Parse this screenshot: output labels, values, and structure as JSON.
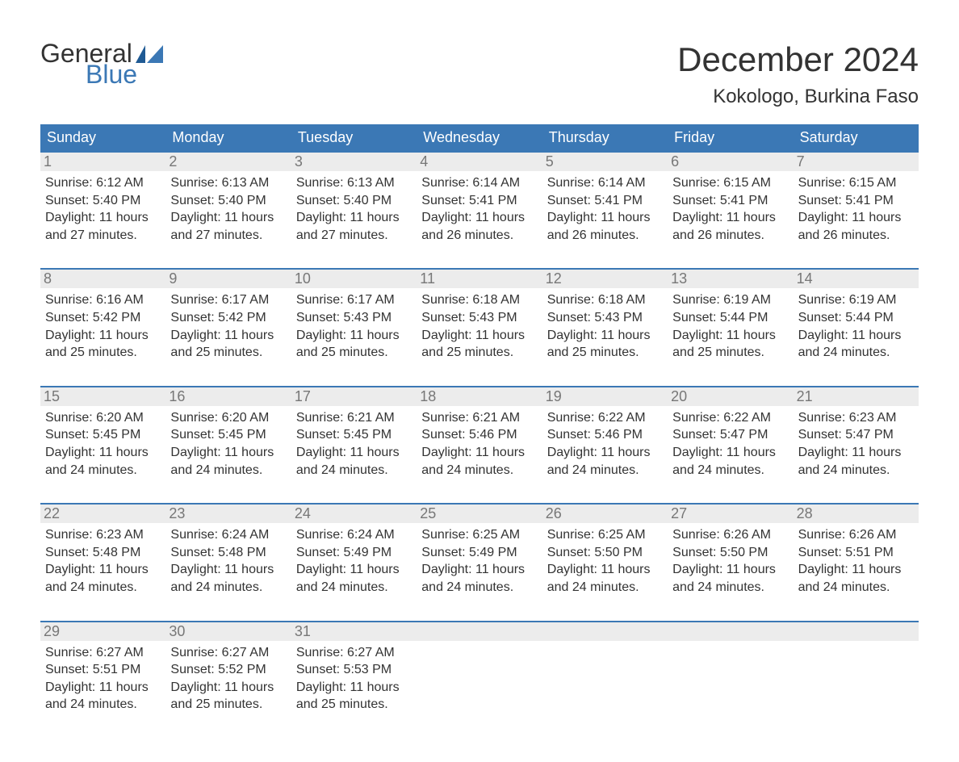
{
  "colors": {
    "brand_blue": "#3b78b5",
    "header_cell_bg": "#3b78b5",
    "header_cell_text": "#ffffff",
    "day_num_bg": "#ececec",
    "day_num_text": "#777777",
    "body_text": "#333333",
    "week_border": "#3b78b5",
    "page_bg": "#ffffff"
  },
  "logo": {
    "word1": "General",
    "word2": "Blue"
  },
  "header": {
    "month_title": "December 2024",
    "location": "Kokologo, Burkina Faso"
  },
  "calendar": {
    "days_of_week": [
      "Sunday",
      "Monday",
      "Tuesday",
      "Wednesday",
      "Thursday",
      "Friday",
      "Saturday"
    ],
    "weeks": [
      [
        {
          "n": "1",
          "sunrise": "Sunrise: 6:12 AM",
          "sunset": "Sunset: 5:40 PM",
          "dl1": "Daylight: 11 hours",
          "dl2": "and 27 minutes."
        },
        {
          "n": "2",
          "sunrise": "Sunrise: 6:13 AM",
          "sunset": "Sunset: 5:40 PM",
          "dl1": "Daylight: 11 hours",
          "dl2": "and 27 minutes."
        },
        {
          "n": "3",
          "sunrise": "Sunrise: 6:13 AM",
          "sunset": "Sunset: 5:40 PM",
          "dl1": "Daylight: 11 hours",
          "dl2": "and 27 minutes."
        },
        {
          "n": "4",
          "sunrise": "Sunrise: 6:14 AM",
          "sunset": "Sunset: 5:41 PM",
          "dl1": "Daylight: 11 hours",
          "dl2": "and 26 minutes."
        },
        {
          "n": "5",
          "sunrise": "Sunrise: 6:14 AM",
          "sunset": "Sunset: 5:41 PM",
          "dl1": "Daylight: 11 hours",
          "dl2": "and 26 minutes."
        },
        {
          "n": "6",
          "sunrise": "Sunrise: 6:15 AM",
          "sunset": "Sunset: 5:41 PM",
          "dl1": "Daylight: 11 hours",
          "dl2": "and 26 minutes."
        },
        {
          "n": "7",
          "sunrise": "Sunrise: 6:15 AM",
          "sunset": "Sunset: 5:41 PM",
          "dl1": "Daylight: 11 hours",
          "dl2": "and 26 minutes."
        }
      ],
      [
        {
          "n": "8",
          "sunrise": "Sunrise: 6:16 AM",
          "sunset": "Sunset: 5:42 PM",
          "dl1": "Daylight: 11 hours",
          "dl2": "and 25 minutes."
        },
        {
          "n": "9",
          "sunrise": "Sunrise: 6:17 AM",
          "sunset": "Sunset: 5:42 PM",
          "dl1": "Daylight: 11 hours",
          "dl2": "and 25 minutes."
        },
        {
          "n": "10",
          "sunrise": "Sunrise: 6:17 AM",
          "sunset": "Sunset: 5:43 PM",
          "dl1": "Daylight: 11 hours",
          "dl2": "and 25 minutes."
        },
        {
          "n": "11",
          "sunrise": "Sunrise: 6:18 AM",
          "sunset": "Sunset: 5:43 PM",
          "dl1": "Daylight: 11 hours",
          "dl2": "and 25 minutes."
        },
        {
          "n": "12",
          "sunrise": "Sunrise: 6:18 AM",
          "sunset": "Sunset: 5:43 PM",
          "dl1": "Daylight: 11 hours",
          "dl2": "and 25 minutes."
        },
        {
          "n": "13",
          "sunrise": "Sunrise: 6:19 AM",
          "sunset": "Sunset: 5:44 PM",
          "dl1": "Daylight: 11 hours",
          "dl2": "and 25 minutes."
        },
        {
          "n": "14",
          "sunrise": "Sunrise: 6:19 AM",
          "sunset": "Sunset: 5:44 PM",
          "dl1": "Daylight: 11 hours",
          "dl2": "and 24 minutes."
        }
      ],
      [
        {
          "n": "15",
          "sunrise": "Sunrise: 6:20 AM",
          "sunset": "Sunset: 5:45 PM",
          "dl1": "Daylight: 11 hours",
          "dl2": "and 24 minutes."
        },
        {
          "n": "16",
          "sunrise": "Sunrise: 6:20 AM",
          "sunset": "Sunset: 5:45 PM",
          "dl1": "Daylight: 11 hours",
          "dl2": "and 24 minutes."
        },
        {
          "n": "17",
          "sunrise": "Sunrise: 6:21 AM",
          "sunset": "Sunset: 5:45 PM",
          "dl1": "Daylight: 11 hours",
          "dl2": "and 24 minutes."
        },
        {
          "n": "18",
          "sunrise": "Sunrise: 6:21 AM",
          "sunset": "Sunset: 5:46 PM",
          "dl1": "Daylight: 11 hours",
          "dl2": "and 24 minutes."
        },
        {
          "n": "19",
          "sunrise": "Sunrise: 6:22 AM",
          "sunset": "Sunset: 5:46 PM",
          "dl1": "Daylight: 11 hours",
          "dl2": "and 24 minutes."
        },
        {
          "n": "20",
          "sunrise": "Sunrise: 6:22 AM",
          "sunset": "Sunset: 5:47 PM",
          "dl1": "Daylight: 11 hours",
          "dl2": "and 24 minutes."
        },
        {
          "n": "21",
          "sunrise": "Sunrise: 6:23 AM",
          "sunset": "Sunset: 5:47 PM",
          "dl1": "Daylight: 11 hours",
          "dl2": "and 24 minutes."
        }
      ],
      [
        {
          "n": "22",
          "sunrise": "Sunrise: 6:23 AM",
          "sunset": "Sunset: 5:48 PM",
          "dl1": "Daylight: 11 hours",
          "dl2": "and 24 minutes."
        },
        {
          "n": "23",
          "sunrise": "Sunrise: 6:24 AM",
          "sunset": "Sunset: 5:48 PM",
          "dl1": "Daylight: 11 hours",
          "dl2": "and 24 minutes."
        },
        {
          "n": "24",
          "sunrise": "Sunrise: 6:24 AM",
          "sunset": "Sunset: 5:49 PM",
          "dl1": "Daylight: 11 hours",
          "dl2": "and 24 minutes."
        },
        {
          "n": "25",
          "sunrise": "Sunrise: 6:25 AM",
          "sunset": "Sunset: 5:49 PM",
          "dl1": "Daylight: 11 hours",
          "dl2": "and 24 minutes."
        },
        {
          "n": "26",
          "sunrise": "Sunrise: 6:25 AM",
          "sunset": "Sunset: 5:50 PM",
          "dl1": "Daylight: 11 hours",
          "dl2": "and 24 minutes."
        },
        {
          "n": "27",
          "sunrise": "Sunrise: 6:26 AM",
          "sunset": "Sunset: 5:50 PM",
          "dl1": "Daylight: 11 hours",
          "dl2": "and 24 minutes."
        },
        {
          "n": "28",
          "sunrise": "Sunrise: 6:26 AM",
          "sunset": "Sunset: 5:51 PM",
          "dl1": "Daylight: 11 hours",
          "dl2": "and 24 minutes."
        }
      ],
      [
        {
          "n": "29",
          "sunrise": "Sunrise: 6:27 AM",
          "sunset": "Sunset: 5:51 PM",
          "dl1": "Daylight: 11 hours",
          "dl2": "and 24 minutes."
        },
        {
          "n": "30",
          "sunrise": "Sunrise: 6:27 AM",
          "sunset": "Sunset: 5:52 PM",
          "dl1": "Daylight: 11 hours",
          "dl2": "and 25 minutes."
        },
        {
          "n": "31",
          "sunrise": "Sunrise: 6:27 AM",
          "sunset": "Sunset: 5:53 PM",
          "dl1": "Daylight: 11 hours",
          "dl2": "and 25 minutes."
        },
        null,
        null,
        null,
        null
      ]
    ]
  }
}
